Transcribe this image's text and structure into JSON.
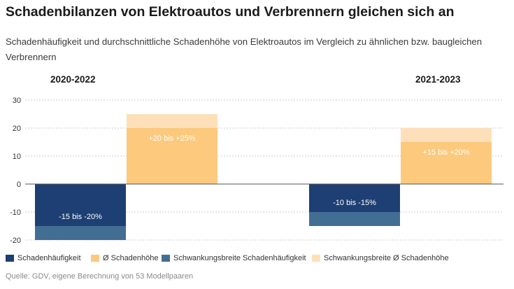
{
  "header": {
    "title": "Schadenbilanzen von Elektroautos und Verbrennern gleichen sich an",
    "subtitle": "Schadenhäufigkeit und durchschnittliche Schadenhöhe von Elektroautos im Vergleich zu ähnlichen bzw. baugleichen Verbrennern"
  },
  "source": "Quelle: GDV, eigene Berechnung von 53 Modellpaaren",
  "colors": {
    "dark_blue": "#1d3f73",
    "mid_blue": "#436e93",
    "orange": "#fcc97d",
    "light_orange": "#fde0b9",
    "grid": "#cccccc",
    "zero_line": "#555555"
  },
  "chart_data": {
    "type": "bar",
    "categories": [
      "2020-2022",
      "2021-2023"
    ],
    "ylim": [
      -20,
      30
    ],
    "y_ticks": [
      "30",
      "20",
      "10",
      "0",
      "-10",
      "-20"
    ],
    "grid": true,
    "series": [
      {
        "name": "Schadenhäufigkeit",
        "color": "#1d3f73",
        "values": [
          -15,
          -10
        ],
        "labels": [
          "-15 bis -20%",
          "-10 bis -15%"
        ]
      },
      {
        "name": "Ø Schadenhöhe",
        "color": "#fcc97d",
        "values": [
          20,
          15
        ],
        "labels": [
          "+20 bis +25%",
          "+15 bis +20%"
        ]
      },
      {
        "name": "Schwankungsbreite Schadenhäufigkeit",
        "color": "#436e93",
        "ranges": [
          [
            -15,
            -20
          ],
          [
            -10,
            -15
          ]
        ]
      },
      {
        "name": "Schwankungsbreite Ø Schadenhöhe",
        "color": "#fde0b9",
        "ranges": [
          [
            20,
            25
          ],
          [
            15,
            20
          ]
        ]
      }
    ],
    "legend_position": "bottom"
  }
}
